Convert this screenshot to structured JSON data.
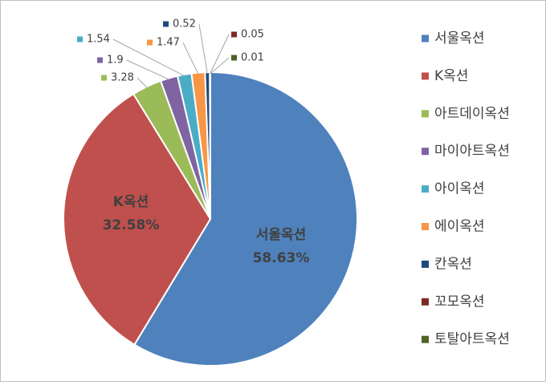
{
  "chart_data": {
    "type": "pie",
    "categories": [
      "서울옥션",
      "K옥션",
      "아트데이옥션",
      "마이아트옥션",
      "아이옥션",
      "에이옥션",
      "칸옥션",
      "꼬모옥션",
      "토탈아트옥션"
    ],
    "values": [
      58.63,
      32.58,
      3.28,
      1.9,
      1.54,
      1.47,
      0.52,
      0.05,
      0.01
    ],
    "value_labels": [
      "58.63%",
      "32.58%",
      "3.28",
      "1.9",
      "1.54",
      "1.47",
      "0.52",
      "0.05",
      "0.01"
    ],
    "colors": [
      "#4f81bd",
      "#c0504d",
      "#9bbb59",
      "#8064a2",
      "#4bacc6",
      "#f79646",
      "#1f497d",
      "#7b2a28",
      "#4f6228"
    ],
    "legend": "right"
  }
}
